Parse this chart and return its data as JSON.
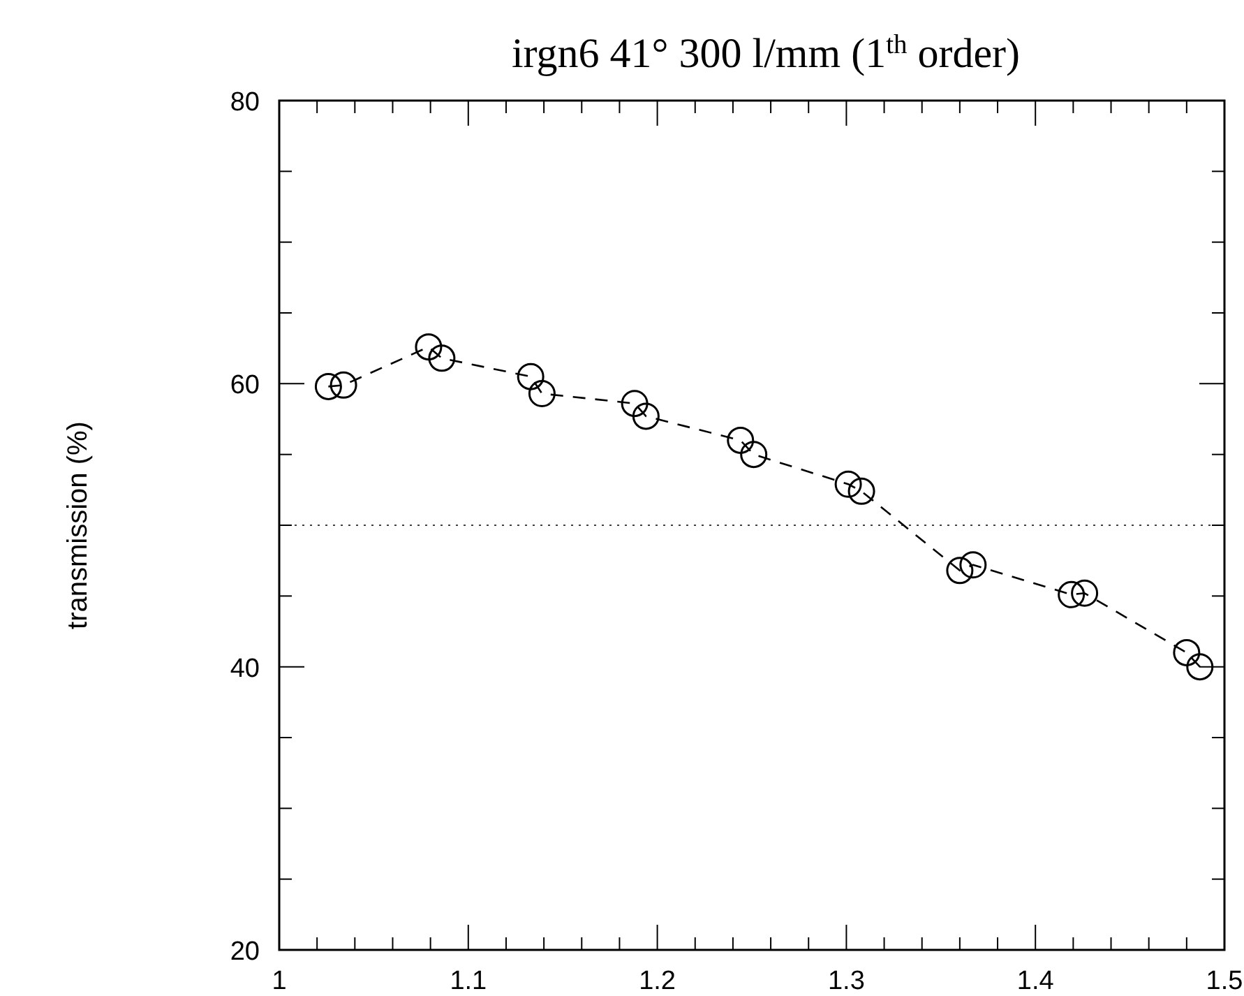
{
  "chart_data": {
    "type": "line",
    "title": "irgn6 41° 300 l/mm (1$^{th}$ order)",
    "ylabel": "transmission (%)",
    "x": [
      1.026,
      1.034,
      1.079,
      1.086,
      1.133,
      1.139,
      1.188,
      1.194,
      1.244,
      1.251,
      1.301,
      1.308,
      1.36,
      1.367,
      1.419,
      1.426,
      1.48,
      1.487
    ],
    "series": [
      {
        "color": "#000000",
        "values": [
          59.8,
          59.9,
          62.6,
          61.8,
          60.5,
          59.3,
          58.6,
          57.7,
          56.0,
          55.0,
          52.9,
          52.4,
          46.8,
          47.2,
          45.1,
          45.2,
          41.0,
          40.0
        ]
      }
    ],
    "xlim": [
      1,
      1.5
    ],
    "xticks": [
      1,
      {
        "value": 1.02,
        "label": null
      },
      {
        "value": 1.04,
        "label": null
      },
      {
        "value": 1.06,
        "label": null
      },
      {
        "value": 1.08,
        "label": null
      },
      1.1,
      {
        "value": 1.12,
        "label": null
      },
      {
        "value": 1.14,
        "label": null
      },
      {
        "value": 1.16,
        "label": null
      },
      {
        "value": 1.18,
        "label": null
      },
      1.2,
      {
        "value": 1.22,
        "label": null
      },
      {
        "value": 1.24,
        "label": null
      },
      {
        "value": 1.26,
        "label": null
      },
      {
        "value": 1.28,
        "label": null
      },
      1.3,
      {
        "value": 1.32,
        "label": null
      },
      {
        "value": 1.34,
        "label": null
      },
      {
        "value": 1.36,
        "label": null
      },
      {
        "value": 1.38,
        "label": null
      },
      1.4,
      {
        "value": 1.42,
        "label": null
      },
      {
        "value": 1.44,
        "label": null
      },
      {
        "value": 1.46,
        "label": null
      },
      {
        "value": 1.48,
        "label": null
      },
      1.5
    ],
    "ylim": [
      20,
      80
    ],
    "yticks": [
      20,
      {
        "value": 25,
        "label": null
      },
      {
        "value": 30,
        "label": null
      },
      {
        "value": 35,
        "label": null
      },
      40,
      {
        "value": 45,
        "label": null
      },
      {
        "value": 50,
        "label": null
      },
      {
        "value": 55,
        "label": null
      },
      60,
      {
        "value": 65,
        "label": null
      },
      {
        "value": 70,
        "label": null
      },
      {
        "value": 75,
        "label": null
      },
      80
    ],
    "ref_lines": [
      {
        "axis": "y",
        "value": 50,
        "line_style": "dotted",
        "color": "#000000"
      }
    ],
    "marker": "circle",
    "line_style": "dashed",
    "grid": false
  }
}
